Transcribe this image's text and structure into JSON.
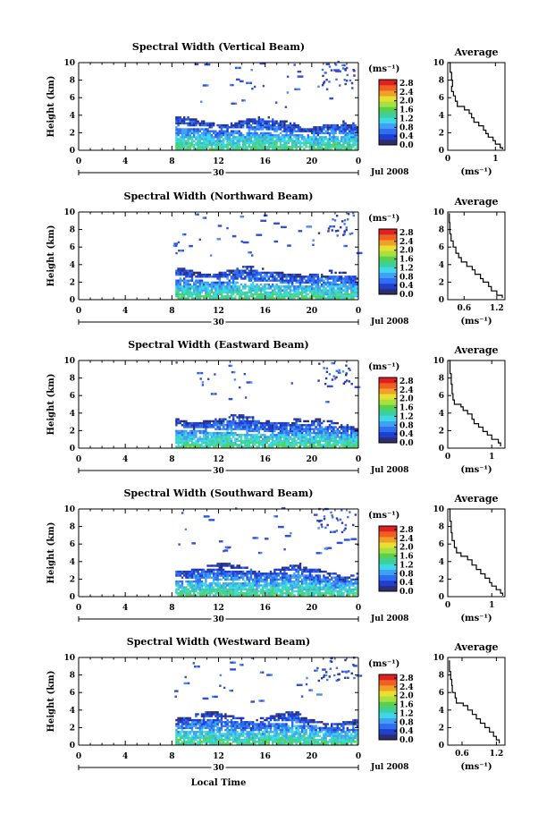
{
  "panels": [
    {
      "title": "Spectral Width (Vertical Beam)",
      "avg_xticks": [
        "0",
        "1"
      ],
      "avg_xdomain": [
        0,
        1.2
      ],
      "profile": [
        [
          0.02,
          10
        ],
        [
          0.05,
          8.9
        ],
        [
          0.08,
          8.0
        ],
        [
          0.1,
          7.3
        ],
        [
          0.08,
          6.7
        ],
        [
          0.12,
          6.2
        ],
        [
          0.16,
          5.6
        ],
        [
          0.2,
          5.0
        ],
        [
          0.35,
          4.6
        ],
        [
          0.45,
          4.2
        ],
        [
          0.5,
          3.7
        ],
        [
          0.55,
          3.2
        ],
        [
          0.65,
          2.8
        ],
        [
          0.75,
          2.3
        ],
        [
          0.8,
          1.9
        ],
        [
          0.85,
          1.5
        ],
        [
          0.95,
          1.1
        ],
        [
          1.0,
          0.7
        ],
        [
          1.1,
          0.3
        ],
        [
          1.15,
          0.1
        ]
      ]
    },
    {
      "title": "Spectral Width (Northward Beam)",
      "avg_xticks": [
        "0.6",
        "1.2"
      ],
      "avg_xdomain": [
        0.3,
        1.35
      ],
      "profile": [
        [
          0.32,
          9.8
        ],
        [
          0.33,
          8.8
        ],
        [
          0.34,
          7.5
        ],
        [
          0.36,
          6.7
        ],
        [
          0.4,
          6.0
        ],
        [
          0.45,
          5.3
        ],
        [
          0.5,
          4.8
        ],
        [
          0.55,
          4.3
        ],
        [
          0.65,
          3.8
        ],
        [
          0.75,
          3.4
        ],
        [
          0.8,
          2.9
        ],
        [
          0.9,
          2.4
        ],
        [
          0.95,
          2.0
        ],
        [
          1.05,
          1.5
        ],
        [
          1.1,
          1.0
        ],
        [
          1.2,
          0.5
        ],
        [
          1.3,
          0.2
        ]
      ]
    },
    {
      "title": "Spectral Width (Eastward Beam)",
      "avg_xticks": [
        "0",
        "1"
      ],
      "avg_xdomain": [
        0,
        1.3
      ],
      "profile": [
        [
          0.02,
          10
        ],
        [
          0.05,
          8.5
        ],
        [
          0.08,
          7.3
        ],
        [
          0.1,
          6.2
        ],
        [
          0.12,
          5.5
        ],
        [
          0.15,
          5.0
        ],
        [
          0.3,
          4.7
        ],
        [
          0.35,
          4.3
        ],
        [
          0.45,
          3.9
        ],
        [
          0.55,
          3.3
        ],
        [
          0.6,
          2.8
        ],
        [
          0.7,
          2.4
        ],
        [
          0.8,
          1.9
        ],
        [
          0.9,
          1.5
        ],
        [
          1.0,
          1.0
        ],
        [
          1.15,
          0.6
        ],
        [
          1.2,
          0.2
        ]
      ]
    },
    {
      "title": "Spectral Width (Southward Beam)",
      "avg_xticks": [
        "0",
        "1"
      ],
      "avg_xdomain": [
        0,
        1.3
      ],
      "profile": [
        [
          0.02,
          10
        ],
        [
          0.05,
          8.6
        ],
        [
          0.08,
          7.3
        ],
        [
          0.1,
          6.4
        ],
        [
          0.15,
          5.6
        ],
        [
          0.2,
          5.0
        ],
        [
          0.3,
          4.6
        ],
        [
          0.45,
          4.2
        ],
        [
          0.55,
          3.6
        ],
        [
          0.65,
          3.1
        ],
        [
          0.75,
          2.6
        ],
        [
          0.85,
          2.1
        ],
        [
          0.95,
          1.6
        ],
        [
          1.0,
          1.2
        ],
        [
          1.1,
          0.8
        ],
        [
          1.2,
          0.4
        ],
        [
          1.25,
          0.1
        ]
      ]
    },
    {
      "title": "Spectral Width (Westward Beam)",
      "avg_xticks": [
        "0.6",
        "1.2"
      ],
      "avg_xdomain": [
        0.35,
        1.35
      ],
      "profile": [
        [
          0.37,
          9.6
        ],
        [
          0.38,
          8.4
        ],
        [
          0.4,
          7.5
        ],
        [
          0.42,
          6.8
        ],
        [
          0.43,
          6.0
        ],
        [
          0.48,
          5.4
        ],
        [
          0.5,
          4.8
        ],
        [
          0.62,
          4.5
        ],
        [
          0.7,
          4.0
        ],
        [
          0.78,
          3.5
        ],
        [
          0.85,
          3.0
        ],
        [
          0.92,
          2.5
        ],
        [
          1.0,
          2.0
        ],
        [
          1.08,
          1.5
        ],
        [
          1.15,
          1.0
        ],
        [
          1.2,
          0.6
        ],
        [
          1.25,
          0.2
        ]
      ]
    }
  ],
  "main_yticks": [
    "0",
    "2",
    "4",
    "6",
    "8",
    "10"
  ],
  "main_xticks": [
    "0",
    "4",
    "8",
    "12",
    "16",
    "20",
    "0"
  ],
  "ylabel": "Height (km)",
  "date_day": "30",
  "date_label": "Jul 2008",
  "colorbar_unit": "(ms⁻¹)",
  "colorbar_ticks": [
    "0.0",
    "0.4",
    "0.8",
    "1.2",
    "1.6",
    "2.0",
    "2.4",
    "2.8"
  ],
  "avg_title": "Average",
  "avg_unit": "(ms⁻¹)",
  "avg_yticks": [
    "0",
    "2",
    "4",
    "6",
    "8",
    "10"
  ],
  "xlabel": "Local Time",
  "chart_data": {
    "type": "heatmap",
    "variable": "Spectral Width",
    "x_range_hours": [
      0,
      24
    ],
    "y_range_km": [
      0,
      10
    ],
    "colorbar_range": [
      0.0,
      2.8
    ],
    "data_start_hour": 8.3,
    "dense_echo_top_km": 3.6
  }
}
